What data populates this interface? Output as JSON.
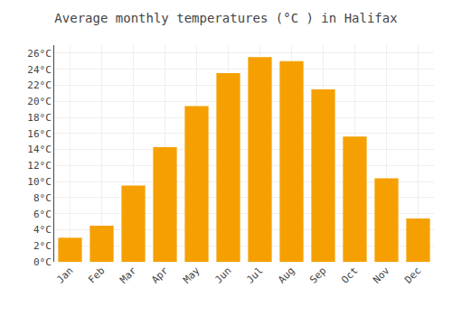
{
  "chart_data": {
    "type": "bar",
    "title": "Average monthly temperatures (°C ) in Halifax",
    "categories": [
      "Jan",
      "Feb",
      "Mar",
      "Apr",
      "May",
      "Jun",
      "Jul",
      "Aug",
      "Sep",
      "Oct",
      "Nov",
      "Dec"
    ],
    "values": [
      3.0,
      4.5,
      9.5,
      14.3,
      19.4,
      23.5,
      25.5,
      25.0,
      21.5,
      15.6,
      10.4,
      5.4
    ],
    "color": "#F5A000",
    "ylim": [
      0,
      27
    ],
    "yticks": [
      {
        "value": 0,
        "label": "0°C"
      },
      {
        "value": 2,
        "label": "2°C"
      },
      {
        "value": 4,
        "label": "4°C"
      },
      {
        "value": 6,
        "label": "6°C"
      },
      {
        "value": 8,
        "label": "8°C"
      },
      {
        "value": 10,
        "label": "10°C"
      },
      {
        "value": 12,
        "label": "12°C"
      },
      {
        "value": 14,
        "label": "14°C"
      },
      {
        "value": 16,
        "label": "16°C"
      },
      {
        "value": 18,
        "label": "18°C"
      },
      {
        "value": 20,
        "label": "20°C"
      },
      {
        "value": 22,
        "label": "22°C"
      },
      {
        "value": 24,
        "label": "24°C"
      },
      {
        "value": 26,
        "label": "26°C"
      }
    ],
    "grid": true
  }
}
